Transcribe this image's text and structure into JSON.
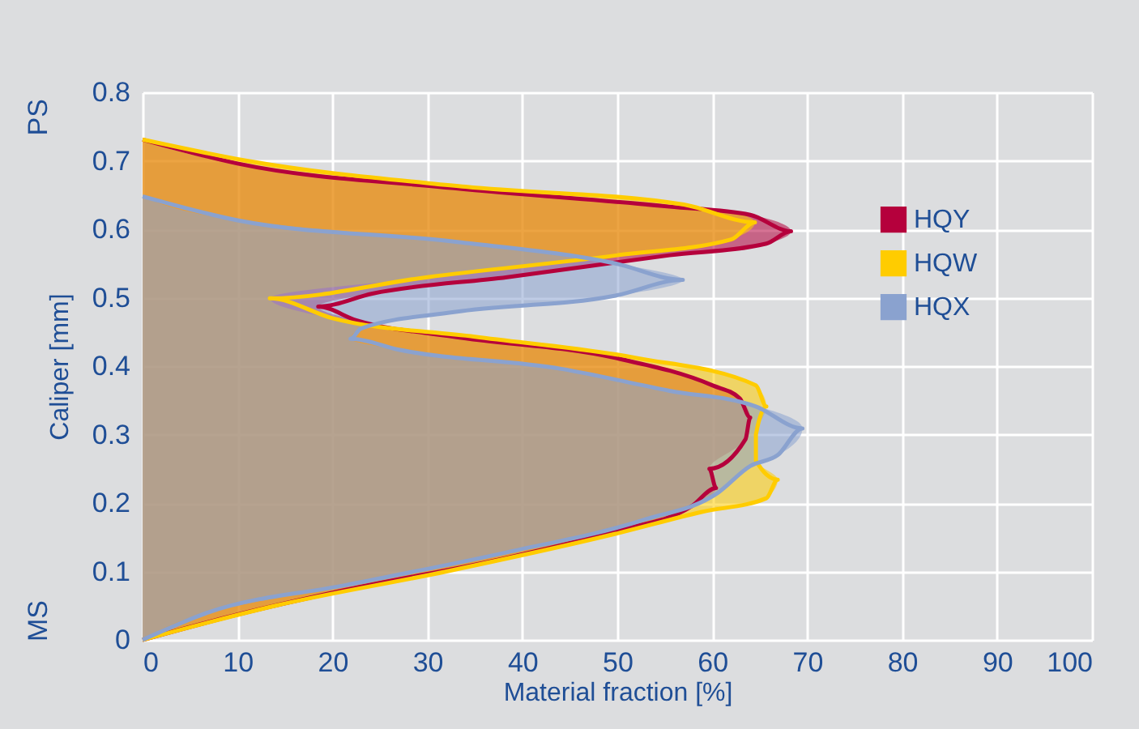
{
  "chart_data": {
    "type": "area",
    "orientation": "horizontal",
    "xlabel": "Material fraction [%]",
    "ylabel": "Caliper [mm]",
    "xlim": [
      0,
      100
    ],
    "xticks": [
      0,
      10,
      20,
      30,
      40,
      50,
      60,
      70,
      80,
      90,
      100
    ],
    "ylim": [
      0,
      0.8
    ],
    "yticks": [
      0,
      0.1,
      0.2,
      0.3,
      0.4,
      0.5,
      0.6,
      0.7,
      0.8
    ],
    "grid": true,
    "legend": "top right",
    "annotations": [
      "MS",
      "PS"
    ],
    "series": [
      {
        "name": "HQY",
        "color": "#b5003c",
        "x": [
          0,
          0.037,
          0.073,
          0.12,
          0.159,
          0.195,
          0.222,
          0.25,
          0.293,
          0.325,
          0.353,
          0.372,
          0.412,
          0.443,
          0.467,
          0.487,
          0.506,
          0.53,
          0.562,
          0.579,
          0.597,
          0.621,
          0.633,
          0.66,
          0.696,
          0.731
        ],
        "values": [
          0,
          10,
          21.4,
          38.4,
          49.8,
          57.8,
          60.4,
          59.7,
          63.5,
          64,
          62.9,
          60,
          49.8,
          32.8,
          22.5,
          18.5,
          24.2,
          38.4,
          55.5,
          65.7,
          68.3,
          64,
          55.5,
          32.8,
          10,
          0
        ]
      },
      {
        "name": "HQW",
        "color": "#ffcc00",
        "x": [
          0,
          0.05,
          0.1,
          0.155,
          0.187,
          0.207,
          0.234,
          0.262,
          0.3,
          0.341,
          0.372,
          0.412,
          0.443,
          0.47,
          0.499,
          0.53,
          0.562,
          0.585,
          0.61,
          0.636,
          0.662,
          0.7,
          0.731
        ],
        "values": [
          0,
          14,
          32,
          49.8,
          58.9,
          65.7,
          66.9,
          64.6,
          64.6,
          65.7,
          64.6,
          52,
          35,
          20,
          13.4,
          30,
          50,
          62,
          64.5,
          57,
          34,
          11,
          0
        ]
      },
      {
        "name": "HQX",
        "color": "#8aa2cf",
        "x": [
          0,
          0.041,
          0.08,
          0.128,
          0.175,
          0.215,
          0.254,
          0.27,
          0.309,
          0.341,
          0.364,
          0.396,
          0.424,
          0.44,
          0.455,
          0.479,
          0.503,
          0.526,
          0.55,
          0.582,
          0.613,
          0.648
        ],
        "values": [
          0,
          7.1,
          21.4,
          38.4,
          52.7,
          60.6,
          64,
          66.9,
          69.5,
          64.6,
          55.5,
          44.1,
          27,
          21.9,
          23,
          32.8,
          49.8,
          56.9,
          49.8,
          32.8,
          10,
          0
        ]
      }
    ]
  }
}
